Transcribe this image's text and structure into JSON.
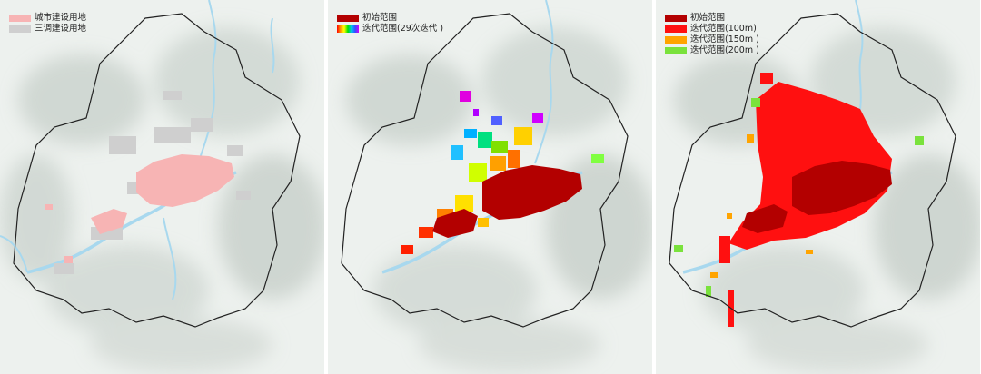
{
  "panels": [
    {
      "legend": [
        {
          "label": "城市建设用地",
          "color": "#f7b4b4"
        },
        {
          "label": "三调建设用地",
          "color": "#cfcfcf"
        }
      ]
    },
    {
      "legend": [
        {
          "label": "初始范围",
          "color": "#b30000"
        },
        {
          "label": "迭代范围(29次迭代 )",
          "color": "rainbow"
        }
      ]
    },
    {
      "legend": [
        {
          "label": "初始范围",
          "color": "#b30000"
        },
        {
          "label": "迭代范围(100m)",
          "color": "#ff1010"
        },
        {
          "label": "迭代范围(150m )",
          "color": "#ffa400"
        },
        {
          "label": "迭代范围(200m )",
          "color": "#7ae23c"
        }
      ]
    }
  ]
}
